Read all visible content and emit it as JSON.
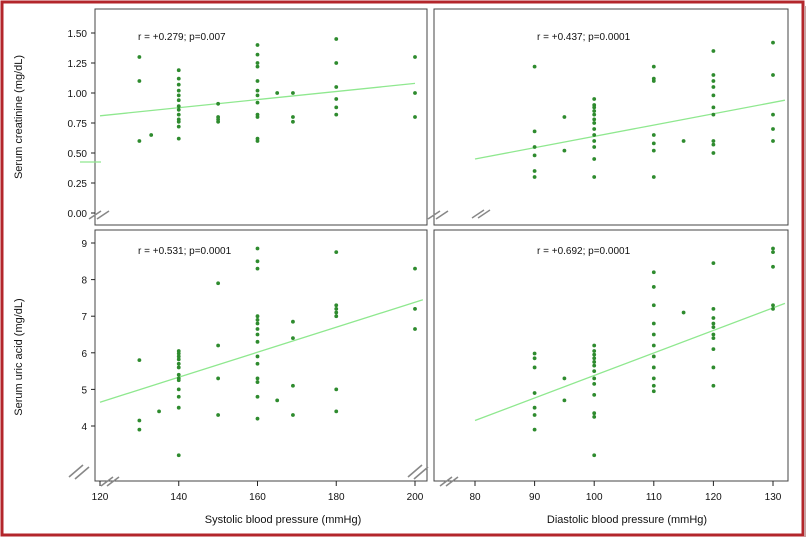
{
  "chart_data": [
    {
      "type": "scatter",
      "panel": "top-left",
      "annotation": "r = +0.279;  p=0.007",
      "ylabel": "Serum creatinine (mg/dL)",
      "xlabel": "",
      "xlim": [
        115,
        202
      ],
      "ylim": [
        0,
        1.55
      ],
      "yticks": [
        0,
        0.25,
        0.5,
        0.75,
        1.0,
        1.25,
        1.5
      ],
      "ytick_labels": [
        "0.00",
        "0.25",
        "0.50",
        "0.75",
        "1.00",
        "1.25",
        "1.50"
      ],
      "xticks": [],
      "axis_break": "y",
      "trend": {
        "x1": 120,
        "y1": 0.81,
        "x2": 200,
        "y2": 1.08
      },
      "points": [
        [
          130,
          1.3
        ],
        [
          130,
          1.1
        ],
        [
          130,
          0.6
        ],
        [
          133,
          0.65
        ],
        [
          140,
          1.19
        ],
        [
          140,
          1.12
        ],
        [
          140,
          1.07
        ],
        [
          140,
          1.02
        ],
        [
          140,
          0.98
        ],
        [
          140,
          0.94
        ],
        [
          140,
          0.89
        ],
        [
          140,
          0.86
        ],
        [
          140,
          0.82
        ],
        [
          140,
          0.78
        ],
        [
          140,
          0.76
        ],
        [
          140,
          0.72
        ],
        [
          140,
          0.62
        ],
        [
          150,
          0.91
        ],
        [
          150,
          0.8
        ],
        [
          150,
          0.78
        ],
        [
          150,
          0.76
        ],
        [
          160,
          1.4
        ],
        [
          160,
          1.32
        ],
        [
          160,
          1.25
        ],
        [
          160,
          1.22
        ],
        [
          160,
          1.1
        ],
        [
          160,
          1.02
        ],
        [
          160,
          0.98
        ],
        [
          160,
          0.92
        ],
        [
          160,
          0.82
        ],
        [
          160,
          0.8
        ],
        [
          160,
          0.62
        ],
        [
          160,
          0.6
        ],
        [
          165,
          1.0
        ],
        [
          169,
          1.0
        ],
        [
          169,
          0.8
        ],
        [
          169,
          0.76
        ],
        [
          180,
          1.45
        ],
        [
          180,
          1.25
        ],
        [
          180,
          1.05
        ],
        [
          180,
          0.95
        ],
        [
          180,
          0.88
        ],
        [
          180,
          0.82
        ],
        [
          200,
          1.3
        ],
        [
          200,
          1.0
        ],
        [
          200,
          0.8
        ]
      ]
    },
    {
      "type": "scatter",
      "panel": "top-right",
      "annotation": "r = +0.437;  p=0.0001",
      "ylabel": "",
      "xlabel": "",
      "xlim": [
        78,
        132
      ],
      "ylim": [
        0,
        1.55
      ],
      "yticks": [],
      "ytick_labels": [],
      "xticks": [],
      "axis_break": "both",
      "trend": {
        "x1": 80,
        "y1": 0.45,
        "x2": 132,
        "y2": 0.94
      },
      "points": [
        [
          90,
          1.22
        ],
        [
          90,
          0.68
        ],
        [
          90,
          0.55
        ],
        [
          90,
          0.48
        ],
        [
          90,
          0.35
        ],
        [
          90,
          0.3
        ],
        [
          95,
          0.8
        ],
        [
          95,
          0.52
        ],
        [
          100,
          0.95
        ],
        [
          100,
          0.9
        ],
        [
          100,
          0.88
        ],
        [
          100,
          0.85
        ],
        [
          100,
          0.82
        ],
        [
          100,
          0.78
        ],
        [
          100,
          0.75
        ],
        [
          100,
          0.7
        ],
        [
          100,
          0.65
        ],
        [
          100,
          0.6
        ],
        [
          100,
          0.55
        ],
        [
          100,
          0.45
        ],
        [
          100,
          0.3
        ],
        [
          110,
          1.22
        ],
        [
          110,
          1.12
        ],
        [
          110,
          1.1
        ],
        [
          110,
          0.65
        ],
        [
          110,
          0.58
        ],
        [
          110,
          0.52
        ],
        [
          110,
          0.3
        ],
        [
          115,
          0.6
        ],
        [
          120,
          1.35
        ],
        [
          120,
          1.15
        ],
        [
          120,
          1.1
        ],
        [
          120,
          1.05
        ],
        [
          120,
          0.98
        ],
        [
          120,
          0.88
        ],
        [
          120,
          0.82
        ],
        [
          120,
          0.6
        ],
        [
          120,
          0.57
        ],
        [
          120,
          0.5
        ],
        [
          130,
          1.42
        ],
        [
          130,
          1.15
        ],
        [
          130,
          0.82
        ],
        [
          130,
          0.7
        ],
        [
          130,
          0.6
        ]
      ]
    },
    {
      "type": "scatter",
      "panel": "bottom-left",
      "annotation": "r = +0.531;  p=0.0001",
      "ylabel": "Serum uric acid (mg/dL)",
      "xlabel": "Systolic blood pressure (mmHg)",
      "xlim": [
        115,
        202
      ],
      "ylim": [
        2.5,
        9.1
      ],
      "yticks": [
        4,
        5,
        6,
        7,
        8,
        9
      ],
      "ytick_labels": [
        "4",
        "5",
        "6",
        "7",
        "8",
        "9"
      ],
      "xticks": [
        120,
        140,
        160,
        180,
        200
      ],
      "xtick_labels": [
        "120",
        "140",
        "160",
        "180",
        "200"
      ],
      "axis_break": "y",
      "trend": {
        "x1": 120,
        "y1": 4.65,
        "x2": 202,
        "y2": 7.45
      },
      "points": [
        [
          130,
          5.8
        ],
        [
          130,
          4.15
        ],
        [
          130,
          3.9
        ],
        [
          135,
          4.4
        ],
        [
          140,
          6.05
        ],
        [
          140,
          5.98
        ],
        [
          140,
          5.9
        ],
        [
          140,
          5.82
        ],
        [
          140,
          5.7
        ],
        [
          140,
          5.6
        ],
        [
          140,
          5.4
        ],
        [
          140,
          5.3
        ],
        [
          140,
          5.25
        ],
        [
          140,
          5.0
        ],
        [
          140,
          4.8
        ],
        [
          140,
          4.5
        ],
        [
          140,
          3.2
        ],
        [
          150,
          7.9
        ],
        [
          150,
          6.2
        ],
        [
          150,
          5.3
        ],
        [
          150,
          4.3
        ],
        [
          160,
          8.85
        ],
        [
          160,
          8.5
        ],
        [
          160,
          8.3
        ],
        [
          160,
          7.0
        ],
        [
          160,
          6.9
        ],
        [
          160,
          6.8
        ],
        [
          160,
          6.65
        ],
        [
          160,
          6.5
        ],
        [
          160,
          6.3
        ],
        [
          160,
          5.9
        ],
        [
          160,
          5.7
        ],
        [
          160,
          5.3
        ],
        [
          160,
          5.2
        ],
        [
          160,
          4.8
        ],
        [
          160,
          4.2
        ],
        [
          165,
          4.7
        ],
        [
          169,
          6.85
        ],
        [
          169,
          6.4
        ],
        [
          169,
          5.1
        ],
        [
          169,
          4.3
        ],
        [
          180,
          8.75
        ],
        [
          180,
          7.3
        ],
        [
          180,
          7.2
        ],
        [
          180,
          7.1
        ],
        [
          180,
          7.0
        ],
        [
          180,
          5.0
        ],
        [
          180,
          4.4
        ],
        [
          200,
          8.3
        ],
        [
          200,
          7.2
        ],
        [
          200,
          6.65
        ]
      ]
    },
    {
      "type": "scatter",
      "panel": "bottom-right",
      "annotation": "r = +0.692;  p=0.0001",
      "ylabel": "",
      "xlabel": "Diastolic blood pressure  (mmHg)",
      "xlim": [
        78,
        132
      ],
      "ylim": [
        2.5,
        9.1
      ],
      "yticks": [],
      "ytick_labels": [],
      "xticks": [
        80,
        90,
        100,
        110,
        120,
        130
      ],
      "xtick_labels": [
        "80",
        "90",
        "100",
        "110",
        "120",
        "130"
      ],
      "axis_break": "both",
      "trend": {
        "x1": 80,
        "y1": 4.15,
        "x2": 132,
        "y2": 7.35
      },
      "points": [
        [
          90,
          5.98
        ],
        [
          90,
          5.85
        ],
        [
          90,
          5.6
        ],
        [
          90,
          4.9
        ],
        [
          90,
          4.5
        ],
        [
          90,
          4.3
        ],
        [
          90,
          3.9
        ],
        [
          95,
          5.3
        ],
        [
          95,
          4.7
        ],
        [
          100,
          6.2
        ],
        [
          100,
          6.05
        ],
        [
          100,
          5.95
        ],
        [
          100,
          5.85
        ],
        [
          100,
          5.75
        ],
        [
          100,
          5.65
        ],
        [
          100,
          5.5
        ],
        [
          100,
          5.3
        ],
        [
          100,
          5.15
        ],
        [
          100,
          4.85
        ],
        [
          100,
          4.35
        ],
        [
          100,
          4.25
        ],
        [
          100,
          3.2
        ],
        [
          110,
          8.2
        ],
        [
          110,
          7.8
        ],
        [
          110,
          7.3
        ],
        [
          110,
          6.8
        ],
        [
          110,
          6.5
        ],
        [
          110,
          6.2
        ],
        [
          110,
          5.9
        ],
        [
          110,
          5.6
        ],
        [
          110,
          5.3
        ],
        [
          110,
          5.1
        ],
        [
          110,
          4.95
        ],
        [
          115,
          7.1
        ],
        [
          120,
          8.45
        ],
        [
          120,
          7.2
        ],
        [
          120,
          6.95
        ],
        [
          120,
          6.8
        ],
        [
          120,
          6.7
        ],
        [
          120,
          6.5
        ],
        [
          120,
          6.4
        ],
        [
          120,
          6.1
        ],
        [
          120,
          5.6
        ],
        [
          120,
          5.1
        ],
        [
          130,
          8.85
        ],
        [
          130,
          8.75
        ],
        [
          130,
          8.35
        ],
        [
          130,
          7.3
        ],
        [
          130,
          7.2
        ]
      ]
    }
  ],
  "colors": {
    "frame": "#b3262b",
    "point": "#2e8b2e",
    "trend": "#8fe88f",
    "axis": "#222222"
  }
}
